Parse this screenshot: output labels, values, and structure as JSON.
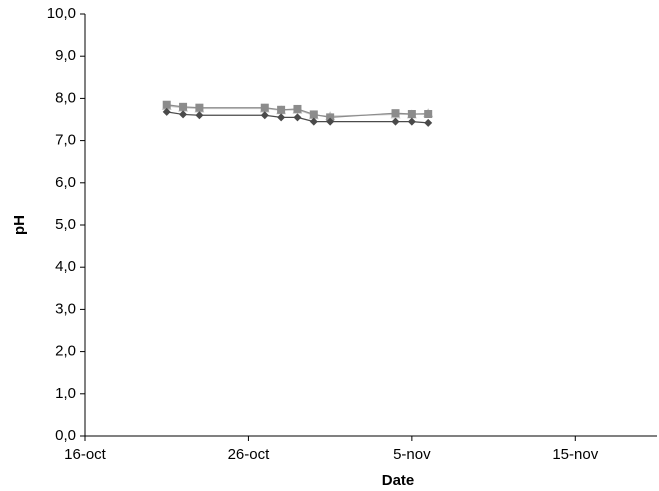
{
  "chart_data": {
    "type": "line",
    "x": [
      "21-oct",
      "22-oct",
      "23-oct",
      "27-oct",
      "28-oct",
      "29-oct",
      "30-oct",
      "31-oct",
      "4-nov",
      "5-nov",
      "6-nov"
    ],
    "series": [
      {
        "color": "#4a4a4a",
        "marker": "diamond",
        "values": [
          7.68,
          7.62,
          7.6,
          7.6,
          7.55,
          7.55,
          7.45,
          7.45,
          7.45,
          7.45,
          7.42
        ]
      },
      {
        "color": "#8c8c8c",
        "marker": "square",
        "values": [
          7.85,
          7.8,
          7.78,
          7.78,
          7.73,
          7.75,
          7.62,
          7.55,
          7.65,
          7.63,
          7.63
        ]
      },
      {
        "color": "#c8c8c8",
        "marker": "triangle",
        "values": [
          7.82,
          7.78,
          7.76,
          7.76,
          7.72,
          7.73,
          7.6,
          7.58,
          7.62,
          7.62,
          7.65
        ]
      }
    ],
    "xlabel": "Date",
    "ylabel": "pH",
    "xlim": [
      "16-oct",
      "20-nov"
    ],
    "xticks": [
      "16-oct",
      "26-oct",
      "5-nov",
      "15-nov"
    ],
    "ylim": [
      0,
      10
    ],
    "yticks": [
      {
        "value": 0,
        "label": "0,0"
      },
      {
        "value": 1,
        "label": "1,0"
      },
      {
        "value": 2,
        "label": "2,0"
      },
      {
        "value": 3,
        "label": "3,0"
      },
      {
        "value": 4,
        "label": "4,0"
      },
      {
        "value": 5,
        "label": "5,0"
      },
      {
        "value": 6,
        "label": "6,0"
      },
      {
        "value": 7,
        "label": "7,0"
      },
      {
        "value": 8,
        "label": "8,0"
      },
      {
        "value": 9,
        "label": "9,0"
      },
      {
        "value": 10,
        "label": "10,0"
      }
    ]
  }
}
